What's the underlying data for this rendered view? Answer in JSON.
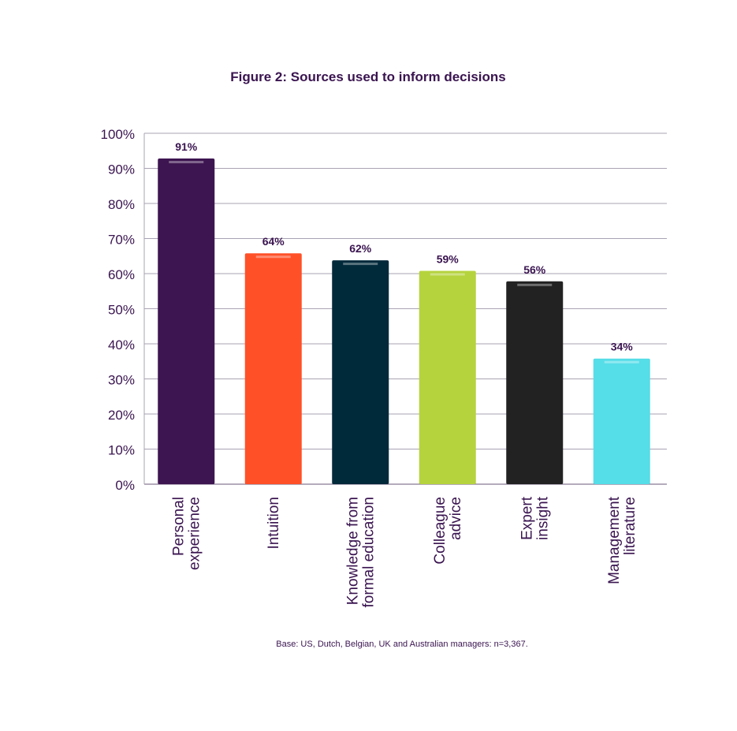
{
  "chart_data": {
    "type": "bar",
    "title": "Figure 2: Sources used to inform decisions",
    "xlabel": "",
    "ylabel": "",
    "ylim": [
      0,
      100
    ],
    "yticks": [
      "0%",
      "10%",
      "20%",
      "30%",
      "40%",
      "50%",
      "60%",
      "70%",
      "80%",
      "90%",
      "100%"
    ],
    "grid": true,
    "categories": [
      [
        "Personal",
        "experience"
      ],
      [
        "Intuition"
      ],
      [
        "Knowledge from",
        "formal education"
      ],
      [
        "Colleague",
        "advice"
      ],
      [
        "Expert",
        "insight"
      ],
      [
        "Management",
        "literature"
      ]
    ],
    "values": [
      91,
      64,
      62,
      59,
      56,
      34
    ],
    "data_labels": [
      "91%",
      "64%",
      "62%",
      "59%",
      "56%",
      "34%"
    ],
    "colors": [
      "#3d1550",
      "#ff5028",
      "#00293a",
      "#b5d33d",
      "#222222",
      "#55dde8"
    ],
    "footnote": "Base: US, Dutch, Belgian, UK and Australian managers: n=3,367."
  }
}
